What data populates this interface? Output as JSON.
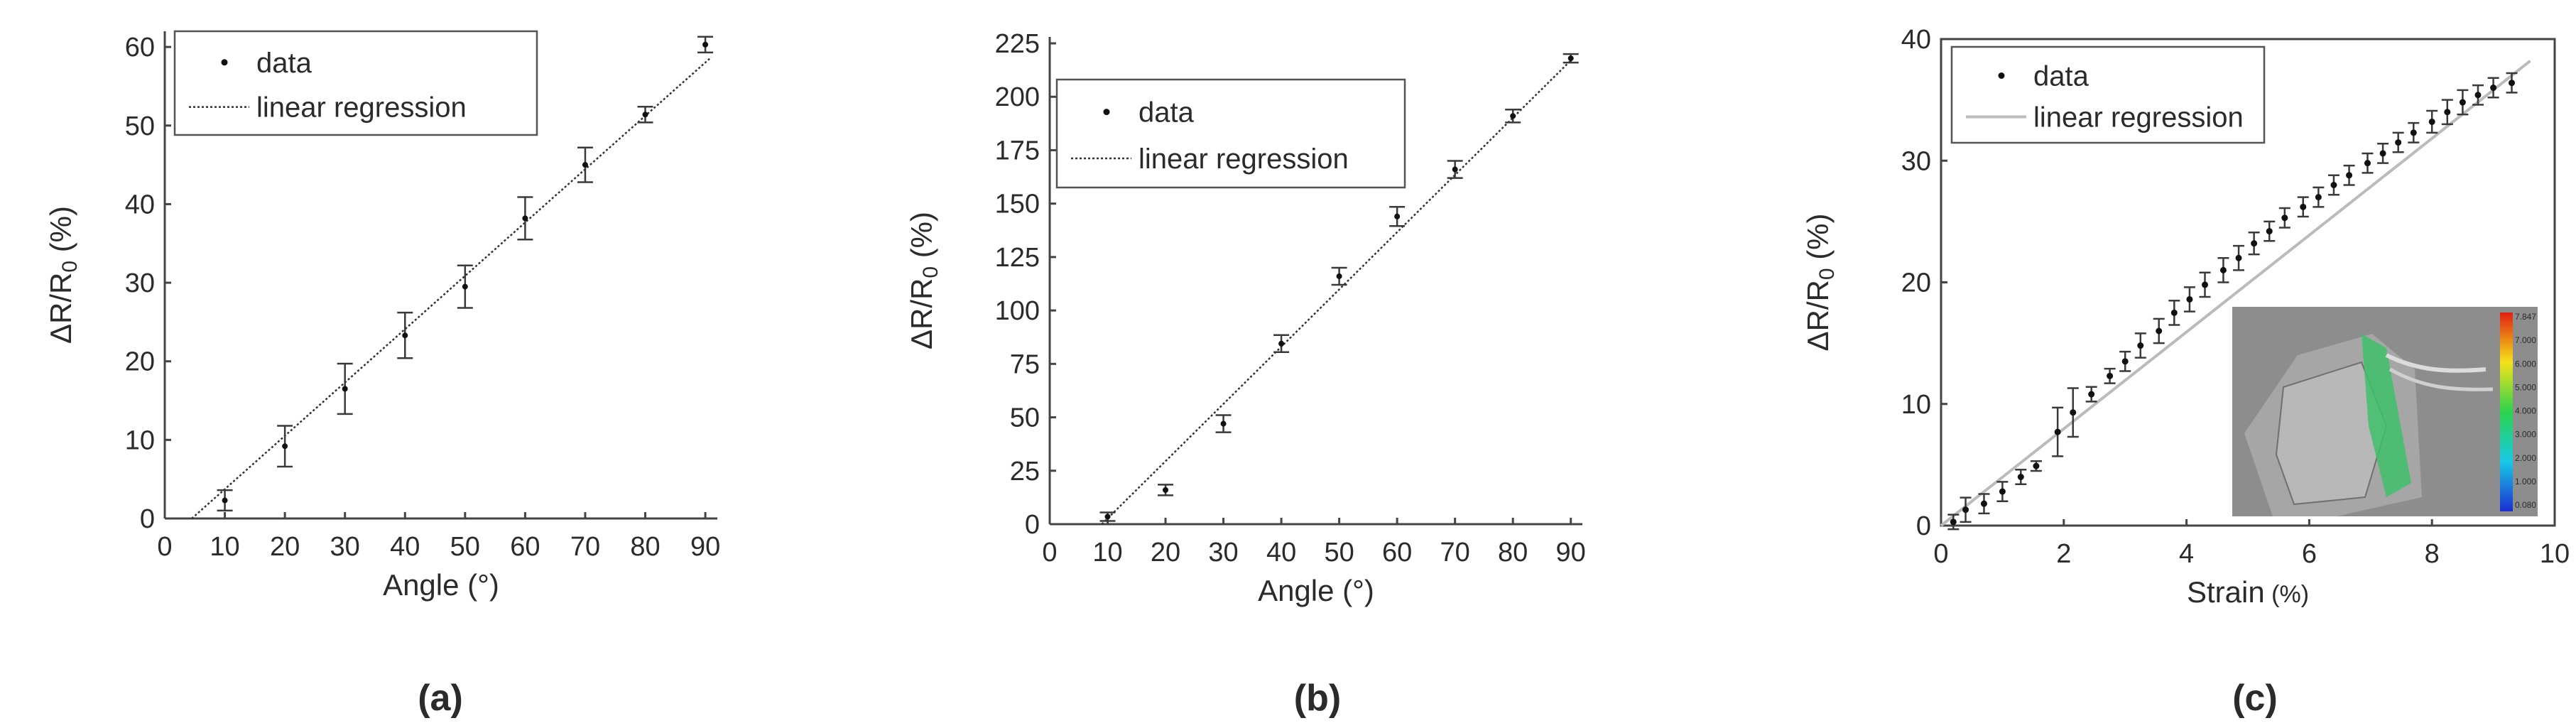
{
  "chart_data": [
    {
      "type": "scatter",
      "panel_label": "(a)",
      "xlabel": "Angle (°)",
      "ylabel_main": "ΔR/R",
      "ylabel_sub": "0",
      "ylabel_suffix": " (%)",
      "xlim": [
        0,
        92
      ],
      "ylim": [
        0,
        62
      ],
      "xticks": [
        0,
        10,
        20,
        30,
        40,
        50,
        60,
        70,
        80,
        90
      ],
      "yticks": [
        0,
        10,
        20,
        30,
        40,
        50,
        60
      ],
      "legend": [
        "data",
        "linear regression"
      ],
      "legend_position": "top-left",
      "series": [
        {
          "name": "data",
          "x": [
            10,
            20,
            30,
            40,
            50,
            60,
            70,
            80,
            90
          ],
          "y": [
            2.3,
            9.2,
            16.5,
            23.3,
            29.5,
            38.2,
            45.0,
            51.4,
            60.3
          ],
          "error": [
            1.3,
            2.6,
            3.2,
            2.9,
            2.7,
            2.7,
            2.2,
            1.0,
            1.0
          ]
        },
        {
          "name": "linear regression",
          "x": [
            4.5,
            91
          ],
          "y": [
            0,
            58.7
          ]
        }
      ]
    },
    {
      "type": "scatter",
      "panel_label": "(b)",
      "xlabel": "Angle (°)",
      "ylabel_main": "ΔR/R",
      "ylabel_sub": "0",
      "ylabel_suffix": " (%)",
      "xlim": [
        0,
        92
      ],
      "ylim": [
        0,
        228
      ],
      "xticks": [
        0,
        10,
        20,
        30,
        40,
        50,
        60,
        70,
        80,
        90
      ],
      "yticks": [
        0,
        25,
        50,
        75,
        100,
        125,
        150,
        175,
        200,
        225
      ],
      "legend": [
        "data",
        "linear regression"
      ],
      "legend_position": "top-left",
      "series": [
        {
          "name": "data",
          "x": [
            10,
            20,
            30,
            40,
            50,
            60,
            70,
            80,
            90
          ],
          "y": [
            3.5,
            16.0,
            47.0,
            84.5,
            116.0,
            144.0,
            166.0,
            191.0,
            218.0
          ],
          "error": [
            2.0,
            2.5,
            4.0,
            4.0,
            4.0,
            4.5,
            4.0,
            3.0,
            2.0
          ]
        },
        {
          "name": "linear regression",
          "x": [
            9,
            90
          ],
          "y": [
            0,
            217
          ]
        }
      ]
    },
    {
      "type": "scatter",
      "panel_label": "(c)",
      "xlabel": "Strain",
      "xlabel_suffix": "(%)",
      "ylabel_main": "ΔR/R",
      "ylabel_sub": "0",
      "ylabel_suffix": " (%)",
      "xlim": [
        0,
        10
      ],
      "ylim": [
        0,
        40
      ],
      "xticks": [
        0,
        2,
        4,
        6,
        8,
        10
      ],
      "yticks": [
        0,
        10,
        20,
        30,
        40
      ],
      "legend": [
        "data",
        "linear regression"
      ],
      "legend_position": "top-left",
      "series": [
        {
          "name": "data",
          "x": [
            0.2,
            0.4,
            0.7,
            1.0,
            1.3,
            1.55,
            1.9,
            2.15,
            2.45,
            2.75,
            3.0,
            3.25,
            3.55,
            3.8,
            4.05,
            4.3,
            4.6,
            4.85,
            5.1,
            5.35,
            5.6,
            5.9,
            6.15,
            6.4,
            6.65,
            6.95,
            7.2,
            7.45,
            7.7,
            8.0,
            8.25,
            8.5,
            8.75,
            9.0,
            9.3
          ],
          "y": [
            0.3,
            1.3,
            1.8,
            2.8,
            4.0,
            4.9,
            7.7,
            9.3,
            10.8,
            12.3,
            13.5,
            14.8,
            16.0,
            17.5,
            18.6,
            19.8,
            21.0,
            22.0,
            23.2,
            24.2,
            25.3,
            26.2,
            27.0,
            28.0,
            28.8,
            29.8,
            30.6,
            31.5,
            32.3,
            33.2,
            34.0,
            34.8,
            35.4,
            36.0,
            36.4
          ],
          "error": [
            0.6,
            1.0,
            0.8,
            0.8,
            0.6,
            0.4,
            2.0,
            2.0,
            0.6,
            0.6,
            0.8,
            1.0,
            1.0,
            1.0,
            1.0,
            1.0,
            1.0,
            1.0,
            0.9,
            0.8,
            0.8,
            0.8,
            0.8,
            0.8,
            0.8,
            0.8,
            0.8,
            0.8,
            0.8,
            0.9,
            1.0,
            1.0,
            0.8,
            0.8,
            0.8
          ]
        },
        {
          "name": "linear regression",
          "x": [
            0,
            9.6
          ],
          "y": [
            0,
            38.2
          ]
        }
      ],
      "inset_colorbar_labels": [
        "7.847",
        "7.000",
        "6.000",
        "5.000",
        "4.000",
        "3.000",
        "2.000",
        "1.000",
        "0.080"
      ]
    }
  ]
}
